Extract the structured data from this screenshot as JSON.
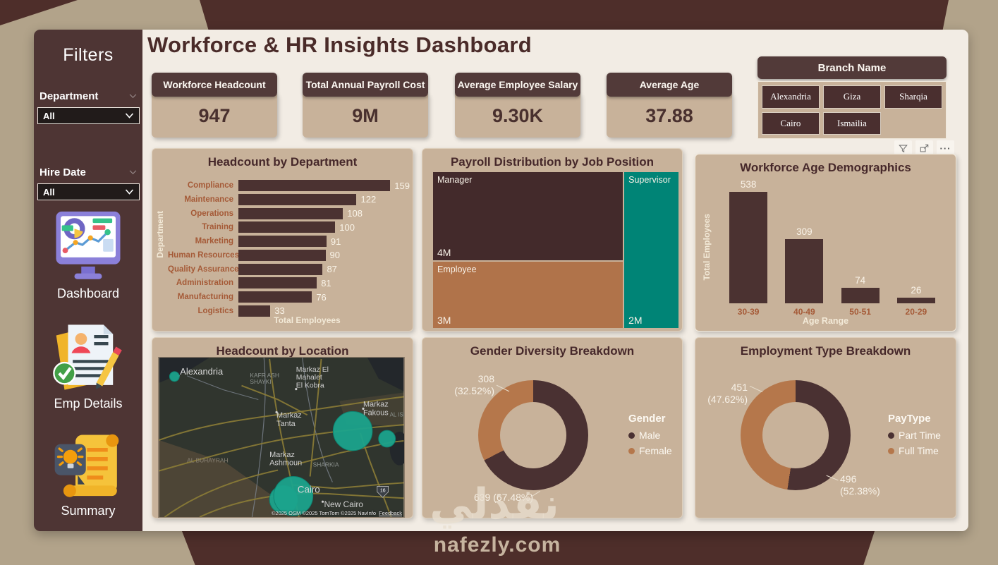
{
  "header": {
    "title": "Workforce & HR Insights Dashboard"
  },
  "sidebar": {
    "title": "Filters",
    "filters": [
      {
        "label": "Department",
        "value": "All"
      },
      {
        "label": "Hire Date",
        "value": "All"
      }
    ],
    "nav": [
      {
        "label": "Dashboard"
      },
      {
        "label": "Emp Details"
      },
      {
        "label": "Summary"
      }
    ]
  },
  "kpis": [
    {
      "label": "Workforce Headcount",
      "value": "947"
    },
    {
      "label": "Total Annual Payroll Cost",
      "value": "9M"
    },
    {
      "label": "Average Employee Salary",
      "value": "9.30K"
    },
    {
      "label": "Average Age",
      "value": "37.88"
    }
  ],
  "branch_slicer": {
    "title": "Branch Name",
    "options": [
      "Alexandria",
      "Giza",
      "Sharqia",
      "Cairo",
      "Ismailia"
    ]
  },
  "colors": {
    "dark_brown": "#4b3231",
    "tan": "#b5774b",
    "teal": "#008476",
    "panel": "#c8b29a",
    "map_bubble": "#1ba38c"
  },
  "chart_data": [
    {
      "id": "dept",
      "type": "bar",
      "orientation": "horizontal",
      "title": "Headcount by Department",
      "xlabel": "Total Employees",
      "ylabel": "Department",
      "categories": [
        "Compliance",
        "Maintenance",
        "Operations",
        "Training",
        "Marketing",
        "Human Resources",
        "Quality Assurance",
        "Administration",
        "Manufacturing",
        "Logistics"
      ],
      "values": [
        159,
        122,
        108,
        100,
        91,
        90,
        87,
        81,
        76,
        33
      ],
      "xlim": [
        0,
        177
      ]
    },
    {
      "id": "payroll",
      "type": "treemap",
      "title": "Payroll Distribution by Job Position",
      "items": [
        {
          "label": "Manager",
          "value": 4,
          "value_label": "4M",
          "color": "#432a2b"
        },
        {
          "label": "Employee",
          "value": 3,
          "value_label": "3M",
          "color": "#b0734a"
        },
        {
          "label": "Supervisor",
          "value": 2,
          "value_label": "2M",
          "color": "#008476"
        }
      ]
    },
    {
      "id": "age",
      "type": "bar",
      "orientation": "vertical",
      "title": "Workforce Age Demographics",
      "xlabel": "Age Range",
      "ylabel": "Total Employees",
      "categories": [
        "30-39",
        "40-49",
        "50-51",
        "20-29"
      ],
      "values": [
        538,
        309,
        74,
        26
      ],
      "ylim": [
        0,
        600
      ]
    },
    {
      "id": "location",
      "type": "map",
      "title": "Headcount by Location",
      "labels": [
        [
          "Alexandria"
        ],
        [
          "KAFR ASH",
          "SHAYKI"
        ],
        [
          "Markaz El",
          "Mahalet",
          "El Kobra"
        ],
        [
          "Markaz",
          "Tanta"
        ],
        [
          "Markaz",
          "Fakous"
        ],
        [
          "AL ISMA'IL"
        ],
        [
          "AL BUHAYRAH"
        ],
        [
          "Markaz",
          "Ashmoun"
        ],
        [
          "SHARKIA"
        ],
        [
          "Cairo"
        ],
        [
          "New Cairo"
        ]
      ],
      "route_shield": "16",
      "attribution": "©2025 OSM  ©2025 TomTom  ©2025 NavInfo",
      "feedback": "Feedback"
    },
    {
      "id": "gender",
      "type": "donut",
      "title": "Gender Diversity Breakdown",
      "legend_title": "Gender",
      "series": [
        {
          "name": "Male",
          "value": 639,
          "pct": 67.48,
          "color": "#4a3132",
          "callout_lines": [
            "639 (67.48%)"
          ]
        },
        {
          "name": "Female",
          "value": 308,
          "pct": 32.52,
          "color": "#b5774b",
          "callout_lines": [
            "308",
            "(32.52%)"
          ]
        }
      ]
    },
    {
      "id": "paytype",
      "type": "donut",
      "title": "Employment Type Breakdown",
      "legend_title": "PayType",
      "series": [
        {
          "name": "Part Time",
          "value": 496,
          "pct": 52.38,
          "color": "#4a3132",
          "callout_lines": [
            "496",
            "(52.38%)"
          ]
        },
        {
          "name": "Full Time",
          "value": 451,
          "pct": 47.62,
          "color": "#b5774b",
          "callout_lines": [
            "451",
            "(47.62%)"
          ]
        }
      ]
    }
  ],
  "watermark": {
    "arabic": "نفذلي",
    "domain": "nafezly.com"
  }
}
